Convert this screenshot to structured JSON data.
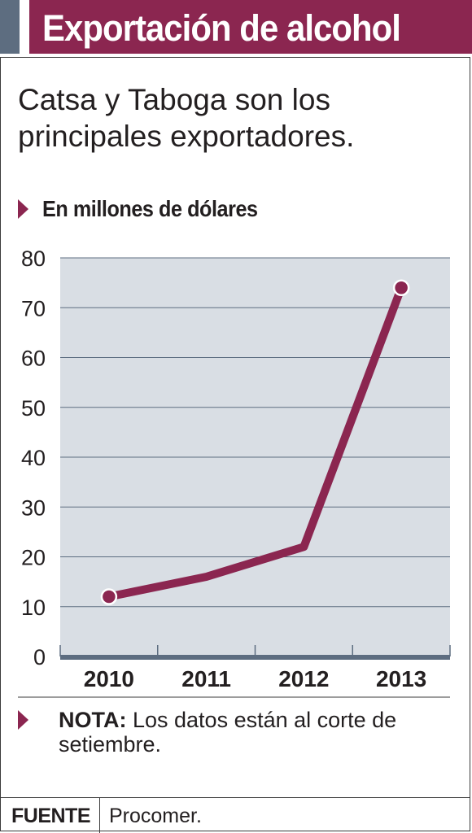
{
  "header": {
    "title": "Exportación de alcohol",
    "accent_color": "#5d6d80",
    "bar_color": "#8b2650"
  },
  "subtitle": "Catsa y Taboga son los principales exportadores.",
  "unit_label": "En millones de dólares",
  "chart_data": {
    "type": "line",
    "title": "",
    "x": [
      "2010",
      "2011",
      "2012",
      "2013"
    ],
    "series": [
      {
        "values": [
          12,
          16,
          22,
          74
        ]
      }
    ],
    "ylim": [
      0,
      80
    ],
    "yticks": [
      "0",
      "10",
      "20",
      "30",
      "40",
      "50",
      "60",
      "70",
      "80"
    ],
    "grid": true,
    "markers": "endpoints",
    "line_color": "#8b2650",
    "plot_background": "#d9dee4",
    "axis_color": "#5d6d80"
  },
  "note": {
    "label": "NOTA:",
    "text": " Los datos están al corte de setiembre."
  },
  "footer": {
    "label": "FUENTE",
    "value": "Procomer."
  }
}
